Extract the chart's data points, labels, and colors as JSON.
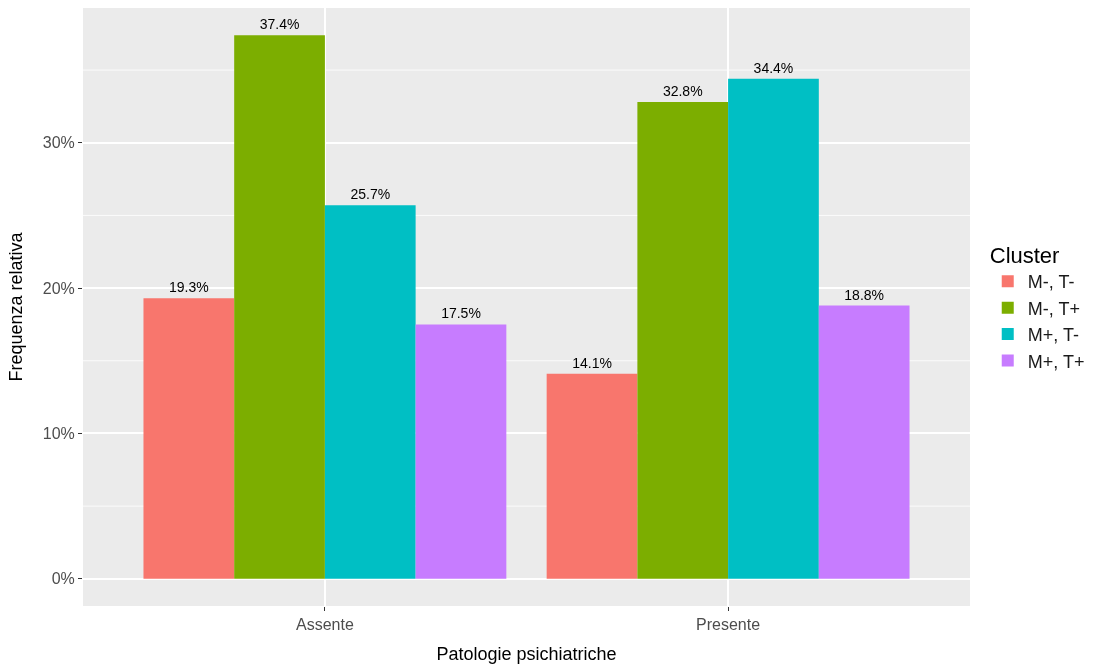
{
  "chart_data": {
    "type": "bar",
    "xlabel": "Patologie psichiatriche",
    "ylabel": "Frequenza relativa",
    "legend_title": "Cluster",
    "categories": [
      "Assente",
      "Presente"
    ],
    "series": [
      {
        "name": "M-, T-",
        "color": "#f8766d",
        "values": [
          19.3,
          14.1
        ],
        "value_labels": [
          "19.3%",
          "14.1%"
        ]
      },
      {
        "name": "M-, T+",
        "color": "#7cae00",
        "values": [
          37.4,
          32.8
        ],
        "value_labels": [
          "37.4%",
          "32.8%"
        ]
      },
      {
        "name": "M+, T-",
        "color": "#00bfc4",
        "values": [
          25.7,
          34.4
        ],
        "value_labels": [
          "25.7%",
          "34.4%"
        ]
      },
      {
        "name": "M+, T+",
        "color": "#c77cff",
        "values": [
          17.5,
          18.8
        ],
        "value_labels": [
          "17.5%",
          "18.8%"
        ]
      }
    ],
    "ylim": [
      -1.87,
      39.27
    ],
    "yticks": [
      {
        "value": 0,
        "label": "0%"
      },
      {
        "value": 5,
        "label": null
      },
      {
        "value": 10,
        "label": "10%"
      },
      {
        "value": 15,
        "label": null
      },
      {
        "value": 20,
        "label": "20%"
      },
      {
        "value": 25,
        "label": null
      },
      {
        "value": 30,
        "label": "30%"
      },
      {
        "value": 35,
        "label": null
      }
    ],
    "grid": true,
    "legend": "right"
  }
}
